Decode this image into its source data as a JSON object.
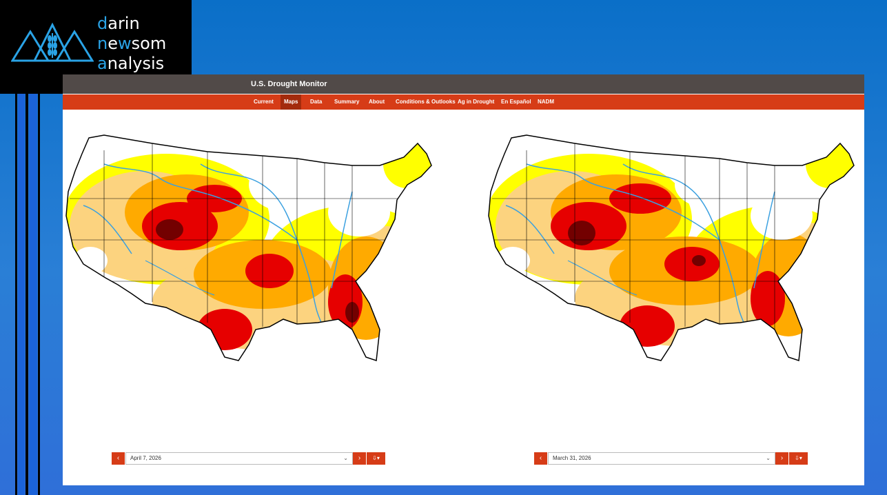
{
  "brand": {
    "line1_accent": "d",
    "line1_rest": "arin",
    "line2_a": "n",
    "line2_b": "e",
    "line2_accent": "w",
    "line2_rest": "som",
    "line3_accent": "a",
    "line3_rest": "nalysis"
  },
  "site": {
    "title": "U.S. Drought Monitor"
  },
  "nav": {
    "items": [
      "Current",
      "Maps",
      "Data",
      "Summary",
      "About",
      "Conditions & Outlooks",
      "Ag in Drought",
      "En Español",
      "NADM"
    ],
    "active": "Maps"
  },
  "maps": {
    "left": {
      "date": "April 7, 2026"
    },
    "right": {
      "date": "March 31, 2026"
    }
  },
  "controls": {
    "prev_icon": "‹",
    "next_icon": "›",
    "dropdown_icon": "⌄",
    "download_icon": "⇩▾"
  },
  "colors": {
    "D0": "#ffff00",
    "D1": "#fcd37f",
    "D2": "#ffaa00",
    "D3": "#e60000",
    "D4": "#730000",
    "accent_nav": "#d63c17",
    "topbar": "#514a48",
    "brand_accent": "#2aa3e6"
  }
}
